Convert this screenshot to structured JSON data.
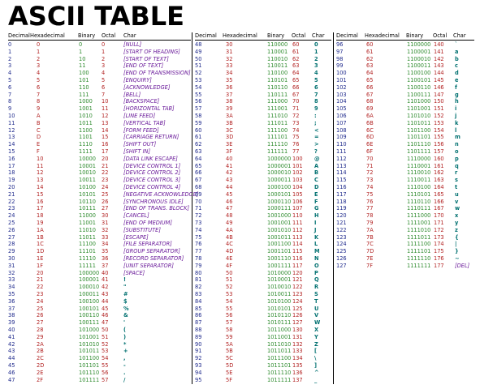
{
  "title": "ASCII TABLE",
  "headers": [
    "Decimal",
    "Hexadecimal",
    "Binary",
    "Octal",
    "Char"
  ],
  "columns": [
    {
      "rows": [
        [
          "0",
          "0",
          "0",
          "0",
          "[NULL]"
        ],
        [
          "1",
          "1",
          "1",
          "1",
          "[START OF HEADING]"
        ],
        [
          "2",
          "2",
          "10",
          "2",
          "[START OF TEXT]"
        ],
        [
          "3",
          "3",
          "11",
          "3",
          "[END OF TEXT]"
        ],
        [
          "4",
          "4",
          "100",
          "4",
          "[END OF TRANSMISSION]"
        ],
        [
          "5",
          "5",
          "101",
          "5",
          "[ENQUIRY]"
        ],
        [
          "6",
          "6",
          "110",
          "6",
          "[ACKNOWLEDGE]"
        ],
        [
          "7",
          "7",
          "111",
          "7",
          "[BELL]"
        ],
        [
          "8",
          "8",
          "1000",
          "10",
          "[BACKSPACE]"
        ],
        [
          "9",
          "9",
          "1001",
          "11",
          "[HORIZONTAL TAB]"
        ],
        [
          "10",
          "A",
          "1010",
          "12",
          "[LINE FEED]"
        ],
        [
          "11",
          "B",
          "1011",
          "13",
          "[VERTICAL TAB]"
        ],
        [
          "12",
          "C",
          "1100",
          "14",
          "[FORM FEED]"
        ],
        [
          "13",
          "D",
          "1101",
          "15",
          "[CARRIAGE RETURN]"
        ],
        [
          "14",
          "E",
          "1110",
          "16",
          "[SHIFT OUT]"
        ],
        [
          "15",
          "F",
          "1111",
          "17",
          "[SHIFT IN]"
        ],
        [
          "16",
          "10",
          "10000",
          "20",
          "[DATA LINK ESCAPE]"
        ],
        [
          "17",
          "11",
          "10001",
          "21",
          "[DEVICE CONTROL 1]"
        ],
        [
          "18",
          "12",
          "10010",
          "22",
          "[DEVICE CONTROL 2]"
        ],
        [
          "19",
          "13",
          "10011",
          "23",
          "[DEVICE CONTROL 3]"
        ],
        [
          "20",
          "14",
          "10100",
          "24",
          "[DEVICE CONTROL 4]"
        ],
        [
          "21",
          "15",
          "10101",
          "25",
          "[NEGATIVE ACKNOWLEDGE]"
        ],
        [
          "22",
          "16",
          "10110",
          "26",
          "[SYNCHRONOUS IDLE]"
        ],
        [
          "23",
          "17",
          "10111",
          "27",
          "[END OF TRANS. BLOCK]"
        ],
        [
          "24",
          "18",
          "11000",
          "30",
          "[CANCEL]"
        ],
        [
          "25",
          "19",
          "11001",
          "31",
          "[END OF MEDIUM]"
        ],
        [
          "26",
          "1A",
          "11010",
          "32",
          "[SUBSTITUTE]"
        ],
        [
          "27",
          "1B",
          "11011",
          "33",
          "[ESCAPE]"
        ],
        [
          "28",
          "1C",
          "11100",
          "34",
          "[FILE SEPARATOR]"
        ],
        [
          "29",
          "1D",
          "11101",
          "35",
          "[GROUP SEPARATOR]"
        ],
        [
          "30",
          "1E",
          "11110",
          "36",
          "[RECORD SEPARATOR]"
        ],
        [
          "31",
          "1F",
          "11111",
          "37",
          "[UNIT SEPARATOR]"
        ],
        [
          "32",
          "20",
          "100000",
          "40",
          "[SPACE]"
        ],
        [
          "33",
          "21",
          "100001",
          "41",
          "!"
        ],
        [
          "34",
          "22",
          "100010",
          "42",
          "\""
        ],
        [
          "35",
          "23",
          "100011",
          "43",
          "#"
        ],
        [
          "36",
          "24",
          "100100",
          "44",
          "$"
        ],
        [
          "37",
          "25",
          "100101",
          "45",
          "%"
        ],
        [
          "38",
          "26",
          "100110",
          "46",
          "&"
        ],
        [
          "39",
          "27",
          "100111",
          "47",
          "'"
        ],
        [
          "40",
          "28",
          "101000",
          "50",
          "("
        ],
        [
          "41",
          "29",
          "101001",
          "51",
          ")"
        ],
        [
          "42",
          "2A",
          "101010",
          "52",
          "*"
        ],
        [
          "43",
          "2B",
          "101011",
          "53",
          "+"
        ],
        [
          "44",
          "2C",
          "101100",
          "54",
          ","
        ],
        [
          "45",
          "2D",
          "101101",
          "55",
          "-"
        ],
        [
          "46",
          "2E",
          "101110",
          "56",
          "."
        ],
        [
          "47",
          "2F",
          "101111",
          "57",
          "/"
        ]
      ]
    },
    {
      "rows": [
        [
          "48",
          "30",
          "110000",
          "60",
          "0"
        ],
        [
          "49",
          "31",
          "110001",
          "61",
          "1"
        ],
        [
          "50",
          "32",
          "110010",
          "62",
          "2"
        ],
        [
          "51",
          "33",
          "110011",
          "63",
          "3"
        ],
        [
          "52",
          "34",
          "110100",
          "64",
          "4"
        ],
        [
          "53",
          "35",
          "110101",
          "65",
          "5"
        ],
        [
          "54",
          "36",
          "110110",
          "66",
          "6"
        ],
        [
          "55",
          "37",
          "110111",
          "67",
          "7"
        ],
        [
          "56",
          "38",
          "111000",
          "70",
          "8"
        ],
        [
          "57",
          "39",
          "111001",
          "71",
          "9"
        ],
        [
          "58",
          "3A",
          "111010",
          "72",
          ":"
        ],
        [
          "59",
          "3B",
          "111011",
          "73",
          ";"
        ],
        [
          "60",
          "3C",
          "111100",
          "74",
          "<"
        ],
        [
          "61",
          "3D",
          "111101",
          "75",
          "="
        ],
        [
          "62",
          "3E",
          "111110",
          "76",
          ">"
        ],
        [
          "63",
          "3F",
          "111111",
          "77",
          "?"
        ],
        [
          "64",
          "40",
          "1000000",
          "100",
          "@"
        ],
        [
          "65",
          "41",
          "1000001",
          "101",
          "A"
        ],
        [
          "66",
          "42",
          "1000010",
          "102",
          "B"
        ],
        [
          "67",
          "43",
          "1000011",
          "103",
          "C"
        ],
        [
          "68",
          "44",
          "1000100",
          "104",
          "D"
        ],
        [
          "69",
          "45",
          "1000101",
          "105",
          "E"
        ],
        [
          "70",
          "46",
          "1000110",
          "106",
          "F"
        ],
        [
          "71",
          "47",
          "1000111",
          "107",
          "G"
        ],
        [
          "72",
          "48",
          "1001000",
          "110",
          "H"
        ],
        [
          "73",
          "49",
          "1001001",
          "111",
          "I"
        ],
        [
          "74",
          "4A",
          "1001010",
          "112",
          "J"
        ],
        [
          "75",
          "4B",
          "1001011",
          "113",
          "K"
        ],
        [
          "76",
          "4C",
          "1001100",
          "114",
          "L"
        ],
        [
          "77",
          "4D",
          "1001101",
          "115",
          "M"
        ],
        [
          "78",
          "4E",
          "1001110",
          "116",
          "N"
        ],
        [
          "79",
          "4F",
          "1001111",
          "117",
          "O"
        ],
        [
          "80",
          "50",
          "1010000",
          "120",
          "P"
        ],
        [
          "81",
          "51",
          "1010001",
          "121",
          "Q"
        ],
        [
          "82",
          "52",
          "1010010",
          "122",
          "R"
        ],
        [
          "83",
          "53",
          "1010011",
          "123",
          "S"
        ],
        [
          "84",
          "54",
          "1010100",
          "124",
          "T"
        ],
        [
          "85",
          "55",
          "1010101",
          "125",
          "U"
        ],
        [
          "86",
          "56",
          "1010110",
          "126",
          "V"
        ],
        [
          "87",
          "57",
          "1010111",
          "127",
          "W"
        ],
        [
          "88",
          "58",
          "1011000",
          "130",
          "X"
        ],
        [
          "89",
          "59",
          "1011001",
          "131",
          "Y"
        ],
        [
          "90",
          "5A",
          "1011010",
          "132",
          "Z"
        ],
        [
          "91",
          "5B",
          "1011011",
          "133",
          "["
        ],
        [
          "92",
          "5C",
          "1011100",
          "134",
          "\\"
        ],
        [
          "93",
          "5D",
          "1011101",
          "135",
          "]"
        ],
        [
          "94",
          "5E",
          "1011110",
          "136",
          "^"
        ],
        [
          "95",
          "5F",
          "1011111",
          "137",
          "_"
        ]
      ]
    },
    {
      "rows": [
        [
          "96",
          "60",
          "1100000",
          "140",
          "`"
        ],
        [
          "97",
          "61",
          "1100001",
          "141",
          "a"
        ],
        [
          "98",
          "62",
          "1100010",
          "142",
          "b"
        ],
        [
          "99",
          "63",
          "1100011",
          "143",
          "c"
        ],
        [
          "100",
          "64",
          "1100100",
          "144",
          "d"
        ],
        [
          "101",
          "65",
          "1100101",
          "145",
          "e"
        ],
        [
          "102",
          "66",
          "1100110",
          "146",
          "f"
        ],
        [
          "103",
          "67",
          "1100111",
          "147",
          "g"
        ],
        [
          "104",
          "68",
          "1101000",
          "150",
          "h"
        ],
        [
          "105",
          "69",
          "1101001",
          "151",
          "i"
        ],
        [
          "106",
          "6A",
          "1101010",
          "152",
          "j"
        ],
        [
          "107",
          "6B",
          "1101011",
          "153",
          "k"
        ],
        [
          "108",
          "6C",
          "1101100",
          "154",
          "l"
        ],
        [
          "109",
          "6D",
          "1101101",
          "155",
          "m"
        ],
        [
          "110",
          "6E",
          "1101110",
          "156",
          "n"
        ],
        [
          "111",
          "6F",
          "1101111",
          "157",
          "o"
        ],
        [
          "112",
          "70",
          "1110000",
          "160",
          "p"
        ],
        [
          "113",
          "71",
          "1110001",
          "161",
          "q"
        ],
        [
          "114",
          "72",
          "1110010",
          "162",
          "r"
        ],
        [
          "115",
          "73",
          "1110011",
          "163",
          "s"
        ],
        [
          "116",
          "74",
          "1110100",
          "164",
          "t"
        ],
        [
          "117",
          "75",
          "1110101",
          "165",
          "u"
        ],
        [
          "118",
          "76",
          "1110110",
          "166",
          "v"
        ],
        [
          "119",
          "77",
          "1110111",
          "167",
          "w"
        ],
        [
          "120",
          "78",
          "1111000",
          "170",
          "x"
        ],
        [
          "121",
          "79",
          "1111001",
          "171",
          "y"
        ],
        [
          "122",
          "7A",
          "1111010",
          "172",
          "z"
        ],
        [
          "123",
          "7B",
          "1111011",
          "173",
          "{"
        ],
        [
          "124",
          "7C",
          "1111100",
          "174",
          "|"
        ],
        [
          "125",
          "7D",
          "1111101",
          "175",
          "}"
        ],
        [
          "126",
          "7E",
          "1111110",
          "176",
          "~"
        ],
        [
          "127",
          "7F",
          "1111111",
          "177",
          "[DEL]"
        ]
      ]
    }
  ],
  "colors": {
    "decimal": "#1f2a8c",
    "hexadecimal": "#b22222",
    "binary": "#2e8b2e",
    "octal": "#b22222",
    "char_control": "#6a1b9a",
    "char_printable": "#007070"
  }
}
